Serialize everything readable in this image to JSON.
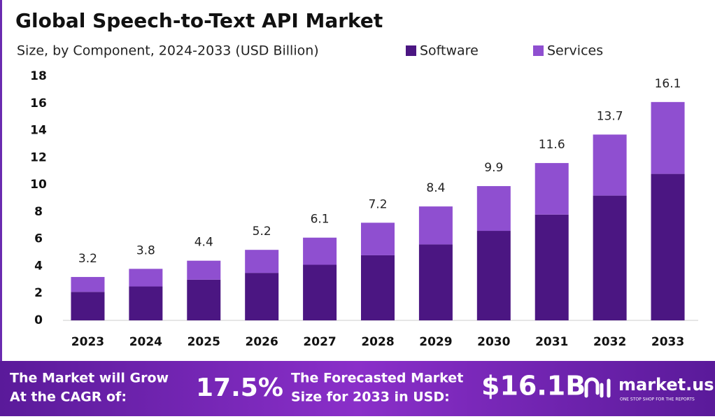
{
  "chart_data": {
    "type": "stacked-bar",
    "title": "Global Speech-to-Text API Market",
    "subtitle": "Size, by Component, 2024-2033 (USD Billion)",
    "categories": [
      "2023",
      "2024",
      "2025",
      "2026",
      "2027",
      "2028",
      "2029",
      "2030",
      "2031",
      "2032",
      "2033"
    ],
    "series": [
      {
        "name": "Software",
        "color": "#4b1682",
        "values": [
          2.1,
          2.5,
          3.0,
          3.5,
          4.1,
          4.8,
          5.6,
          6.6,
          7.8,
          9.2,
          10.8
        ]
      },
      {
        "name": "Services",
        "color": "#8f4fd0",
        "values": [
          1.1,
          1.3,
          1.4,
          1.7,
          2.0,
          2.4,
          2.8,
          3.3,
          3.8,
          4.5,
          5.3
        ]
      }
    ],
    "totals": [
      3.2,
      3.8,
      4.4,
      5.2,
      6.1,
      7.2,
      8.4,
      9.9,
      11.6,
      13.7,
      16.1
    ],
    "ylim": [
      0,
      18
    ],
    "yticks": [
      0,
      2,
      4,
      6,
      8,
      10,
      12,
      14,
      16,
      18
    ],
    "grid": false
  },
  "banner": {
    "cagr_text_1": "The Market will Grow",
    "cagr_text_2": "At the CAGR of:",
    "cagr": "17.5%",
    "forecast_text_1": "The Forecasted Market",
    "forecast_text_2": "Size for 2033 in USD:",
    "forecast": "$16.1B",
    "logo": "market.us",
    "tagline": "ONE STOP SHOP FOR THE REPORTS"
  }
}
